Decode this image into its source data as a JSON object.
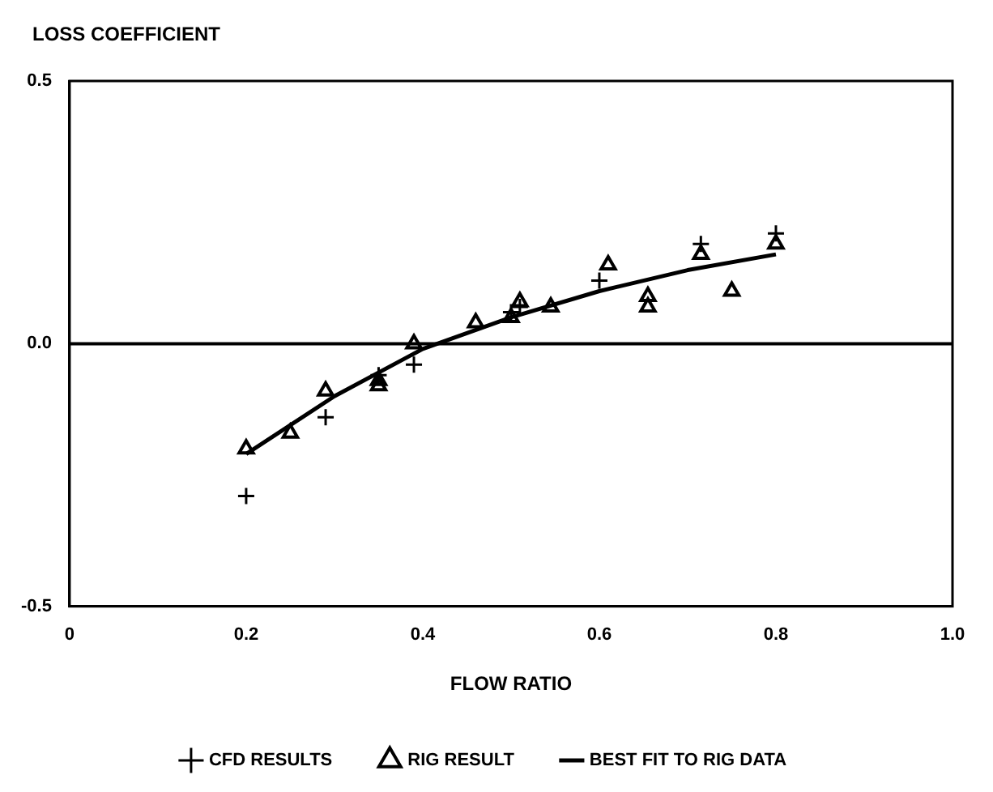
{
  "chart_data": {
    "type": "scatter",
    "ylabel": "LOSS COEFFICIENT",
    "xlabel": "FLOW RATIO",
    "xlim": [
      0,
      1.0
    ],
    "xticks": [
      0,
      0.2,
      0.4,
      0.6,
      0.8,
      {
        "value": 1.0,
        "label": "1.0"
      }
    ],
    "ylim": [
      -0.5,
      0.5
    ],
    "yticks": [
      -0.5,
      {
        "value": 0,
        "label": "0.0"
      },
      0.5
    ],
    "grid": false,
    "legend": "bottom",
    "ref_lines": [
      {
        "axis": "y",
        "value": 0,
        "color": "#000000"
      }
    ],
    "series": [
      {
        "name": "CFD RESULTS",
        "type": "scatter",
        "marker": "cross",
        "color": "#000000",
        "x": [
          0.2,
          0.29,
          0.35,
          0.39,
          0.5,
          0.51,
          0.6,
          0.715,
          0.8
        ],
        "values": [
          -0.29,
          -0.14,
          -0.06,
          -0.04,
          0.06,
          0.07,
          0.12,
          0.19,
          0.21
        ]
      },
      {
        "name": "RIG RESULT",
        "type": "scatter",
        "marker": "triangle",
        "color": "#000000",
        "x": [
          0.2,
          0.25,
          0.29,
          0.35,
          0.35,
          0.39,
          0.46,
          0.5,
          0.51,
          0.545,
          0.61,
          0.655,
          0.655,
          0.715,
          0.75,
          0.8
        ],
        "values": [
          -0.2,
          -0.17,
          -0.09,
          -0.07,
          -0.08,
          0.0,
          0.04,
          0.05,
          0.08,
          0.07,
          0.15,
          0.09,
          0.07,
          0.17,
          0.1,
          0.19
        ]
      },
      {
        "name": "BEST FIT TO RIG DATA",
        "type": "line",
        "marker": "none",
        "line_style": "solid",
        "color": "#000000",
        "x": [
          0.2,
          0.3,
          0.4,
          0.5,
          0.6,
          0.7,
          0.8
        ],
        "values": [
          -0.21,
          -0.1,
          -0.01,
          0.05,
          0.1,
          0.14,
          0.17
        ]
      }
    ]
  }
}
